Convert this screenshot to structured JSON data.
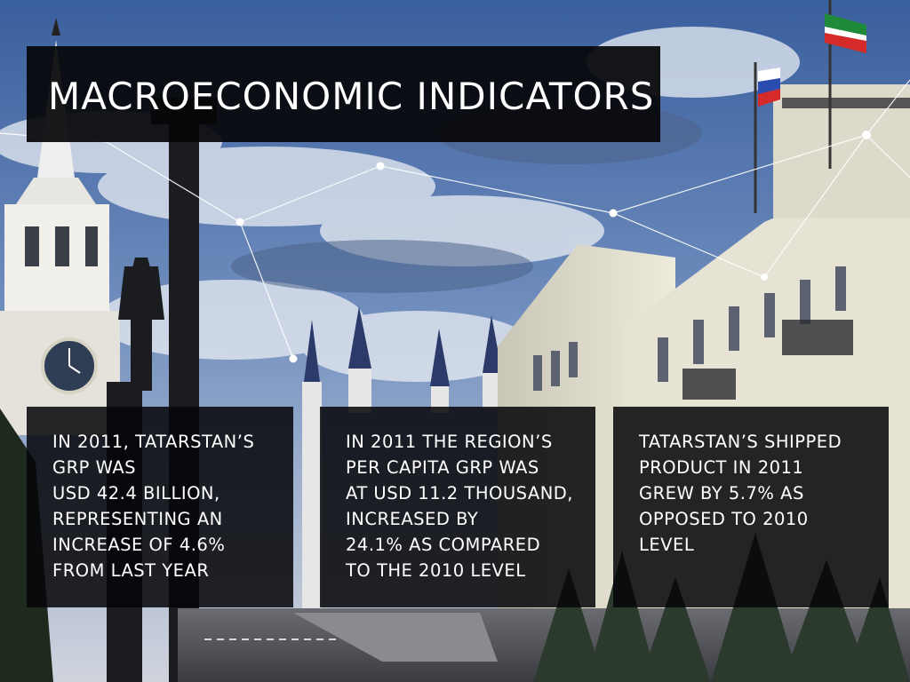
{
  "slide": {
    "title": "MACROECONOMIC INDICATORS",
    "panels": [
      {
        "lines": [
          "IN 2011, TATARSTAN’S",
          "GRP WAS",
          "USD 42.4 BILLION,",
          "REPRESENTING AN",
          "INCREASE OF 4.6%",
          "FROM LAST YEAR"
        ]
      },
      {
        "lines": [
          "IN 2011 THE REGION’S",
          "PER CAPITA GRP WAS",
          "AT USD 11.2 THOUSAND,",
          "INCREASED BY",
          "24.1% AS COMPARED",
          "TO THE 2010 LEVEL"
        ]
      },
      {
        "lines": [
          "TATARSTAN’S SHIPPED",
          "PRODUCT IN 2011",
          "GREW BY 5.7% AS",
          "OPPOSED TO 2010",
          "LEVEL"
        ]
      }
    ]
  },
  "colors": {
    "sky_top": "#3a5f9e",
    "sky_mid": "#8fa7cc",
    "building": "#d9d5c4",
    "panel_bg": "#050508",
    "text": "#ffffff",
    "flag_tatarstan_green": "#1f8a3a",
    "flag_tatarstan_red": "#d42a2a"
  }
}
